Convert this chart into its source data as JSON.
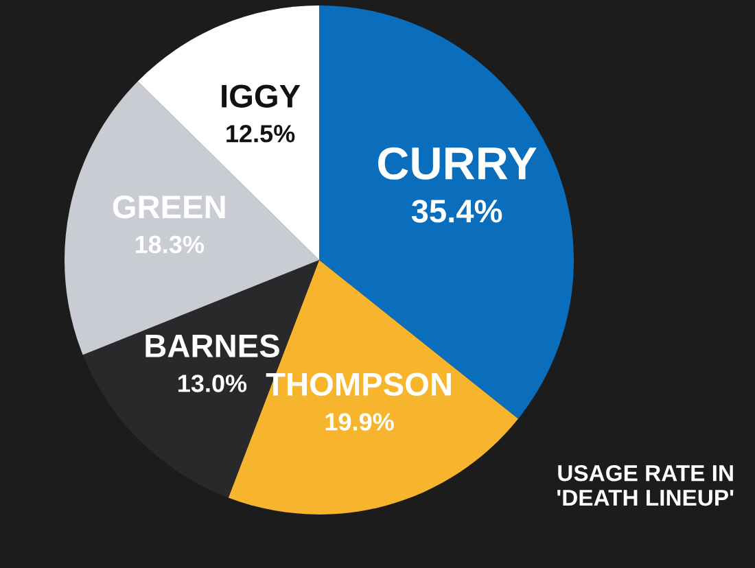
{
  "chart_data": {
    "type": "pie",
    "categories": [
      "CURRY",
      "THOMPSON",
      "BARNES",
      "GREEN",
      "IGGY"
    ],
    "values": [
      35.4,
      19.9,
      13.0,
      18.3,
      12.5
    ],
    "value_labels": [
      "35.4%",
      "19.9%",
      "13.0%",
      "18.3%",
      "12.5%"
    ],
    "colors": [
      "#0a6ebd",
      "#f6b52c",
      "#29292b",
      "#c9ccd2",
      "#ffffff"
    ],
    "annotations": [
      "USAGE RATE IN\n'DEATH LINEUP'"
    ],
    "legend": false
  }
}
